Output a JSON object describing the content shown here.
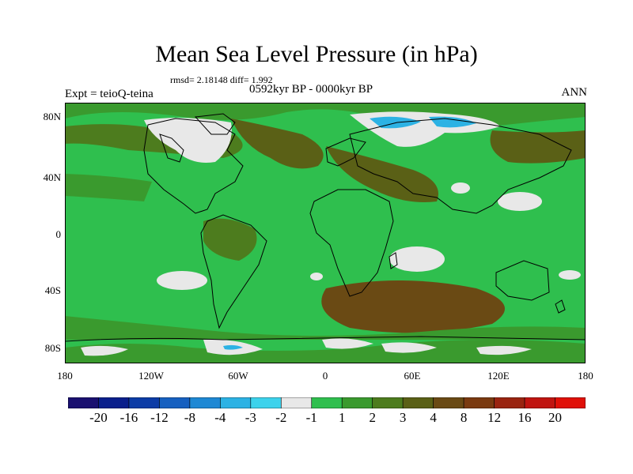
{
  "title": "Mean Sea Level Pressure (in hPa)",
  "stats": "rmsd= 2.18148  diff= 1.992",
  "experiment": "Expt = teioQ-teina",
  "period": "0592kyr BP - 0000kyr BP",
  "season": "ANN",
  "axes": {
    "lat_labels": [
      "80N",
      "40N",
      "0",
      "40S",
      "80S"
    ],
    "lon_labels": [
      "180",
      "120W",
      "60W",
      "0",
      "60E",
      "120E",
      "180"
    ]
  },
  "colorbar": {
    "colors": [
      "#1a1070",
      "#0a1f8c",
      "#0c3ca6",
      "#1660c0",
      "#1e88d4",
      "#2cb2e4",
      "#3cd2ec",
      "#e8e8e8",
      "#2fbf4e",
      "#3a9a2e",
      "#4d7c1e",
      "#5a6016",
      "#6a4a14",
      "#7a3a10",
      "#9a2410",
      "#c01410",
      "#e01008"
    ],
    "labels": [
      "-20",
      "-16",
      "-12",
      "-8",
      "-4",
      "-3",
      "-2",
      "-1",
      "1",
      "2",
      "3",
      "4",
      "8",
      "12",
      "16",
      "20"
    ]
  }
}
